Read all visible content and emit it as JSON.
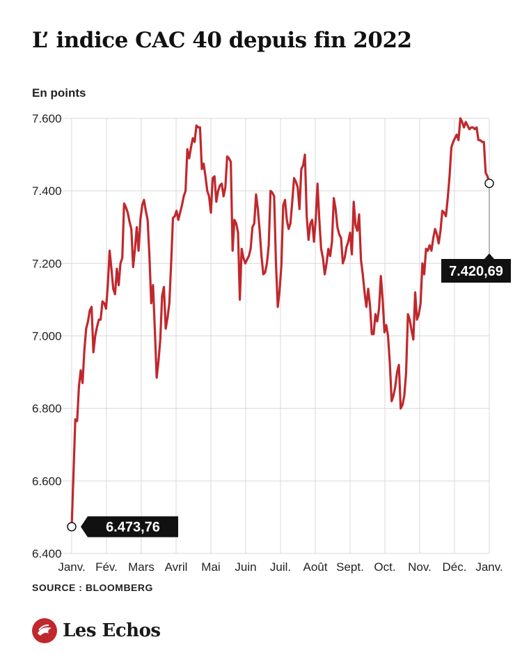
{
  "title": "L’ indice CAC 40 depuis fin 2022",
  "unit_label": "En points",
  "source": "SOURCE : BLOOMBERG",
  "logo_text": "Les Echos",
  "colors": {
    "line": "#c0282d",
    "grid": "#d9d9d9",
    "label_bg": "#111111",
    "label_text": "#ffffff"
  },
  "chart_data": {
    "type": "line",
    "title": "L’ indice CAC 40 depuis fin 2022",
    "ylabel": "En points",
    "xlabel": "",
    "ylim": [
      6400,
      7600
    ],
    "yticks": [
      6400,
      6600,
      6800,
      7000,
      7200,
      7400,
      7600
    ],
    "ytick_labels": [
      "6.400",
      "6.600",
      "6.800",
      "7.000",
      "7.200",
      "7.400",
      "7.600"
    ],
    "xtick_labels": [
      "Janv.",
      "Fév.",
      "Mars",
      "Avril",
      "Mai",
      "Juin",
      "Juil.",
      "Août",
      "Sept.",
      "Oct.",
      "Nov.",
      "Déc.",
      "Janv."
    ],
    "grid": true,
    "legend": "none",
    "series": [
      {
        "values": [
          6473.76,
          6620,
          6770,
          6765,
          6860,
          6905,
          6870,
          6960,
          7020,
          7040,
          7070,
          7080,
          6955,
          7000,
          7025,
          7045,
          7045,
          7095,
          7090,
          7075,
          7140,
          7235,
          7185,
          7130,
          7115,
          7185,
          7140,
          7200,
          7215,
          7365,
          7355,
          7340,
          7315,
          7295,
          7190,
          7240,
          7300,
          7235,
          7320,
          7360,
          7375,
          7345,
          7320,
          7220,
          7090,
          7140,
          7015,
          6885,
          6930,
          6990,
          7110,
          7135,
          7020,
          7050,
          7090,
          7200,
          7325,
          7330,
          7345,
          7320,
          7340,
          7360,
          7385,
          7400,
          7515,
          7490,
          7520,
          7545,
          7535,
          7580,
          7575,
          7575,
          7460,
          7475,
          7440,
          7400,
          7385,
          7340,
          7435,
          7440,
          7370,
          7400,
          7415,
          7420,
          7385,
          7410,
          7495,
          7490,
          7480,
          7235,
          7320,
          7310,
          7285,
          7100,
          7240,
          7215,
          7200,
          7210,
          7220,
          7240,
          7300,
          7310,
          7390,
          7350,
          7290,
          7220,
          7170,
          7175,
          7200,
          7250,
          7400,
          7395,
          7385,
          7200,
          7080,
          7125,
          7195,
          7360,
          7375,
          7320,
          7295,
          7310,
          7370,
          7435,
          7425,
          7410,
          7350,
          7460,
          7470,
          7500,
          7330,
          7265,
          7310,
          7320,
          7260,
          7320,
          7420,
          7320,
          7240,
          7215,
          7170,
          7200,
          7240,
          7220,
          7260,
          7380,
          7350,
          7300,
          7280,
          7270,
          7200,
          7215,
          7245,
          7260,
          7285,
          7225,
          7370,
          7305,
          7290,
          7335,
          7210,
          7170,
          7120,
          7080,
          7130,
          7085,
          7005,
          7005,
          7060,
          7040,
          7075,
          7165,
          7100,
          7010,
          7030,
          7000,
          6925,
          6820,
          6835,
          6860,
          6900,
          6920,
          6800,
          6810,
          6835,
          6900,
          7060,
          7045,
          7015,
          6990,
          7120,
          7045,
          7060,
          7090,
          7200,
          7170,
          7240,
          7235,
          7250,
          7235,
          7270,
          7295,
          7280,
          7255,
          7290,
          7345,
          7340,
          7330,
          7380,
          7440,
          7520,
          7535,
          7545,
          7555,
          7540,
          7600,
          7590,
          7575,
          7590,
          7580,
          7570,
          7575,
          7575,
          7570,
          7575,
          7540,
          7540,
          7535,
          7535,
          7450,
          7440,
          7420.69
        ]
      }
    ],
    "annotations": [
      {
        "text": "6.473,76",
        "point": "first"
      },
      {
        "text": "7.420,69",
        "point": "last"
      }
    ]
  }
}
